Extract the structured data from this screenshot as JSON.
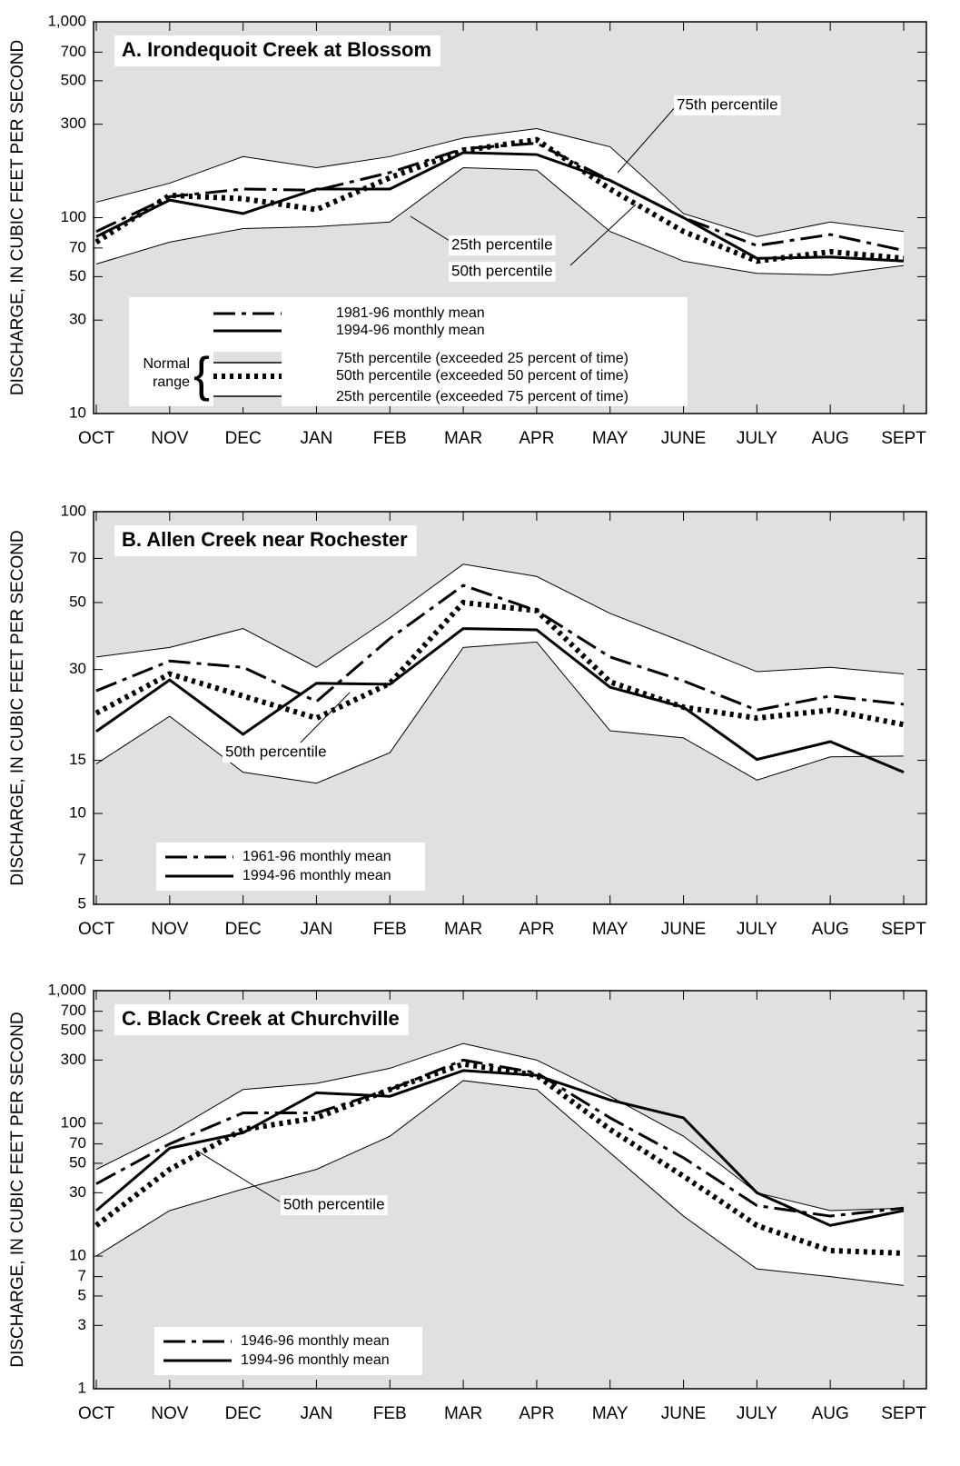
{
  "chart_data": [
    {
      "type": "line",
      "title": "A. Irondequoit Creek at Blossom",
      "y_label": "DISCHARGE, IN CUBIC FEET PER SECOND",
      "log_scale": true,
      "ylim": [
        10,
        1000
      ],
      "yticks": [
        10,
        30,
        50,
        70,
        100,
        300,
        500,
        700,
        {
          "value": 1000,
          "label": "1,000"
        }
      ],
      "categories": [
        "OCT",
        "NOV",
        "DEC",
        "JAN",
        "FEB",
        "MAR",
        "APR",
        "MAY",
        "JUNE",
        "JULY",
        "AUG",
        "SEPT"
      ],
      "background": "#e0e0e0",
      "band_color": "#ffffff",
      "normal_range_label": [
        "Normal",
        "range"
      ],
      "series": [
        {
          "name": "1981-96 monthly mean",
          "color": "#000000",
          "style": "dashdot",
          "in_legend": true,
          "values": [
            85,
            128,
            140,
            138,
            170,
            225,
            240,
            155,
            100,
            72,
            82,
            68
          ]
        },
        {
          "name": "1994-96 monthly mean",
          "color": "#000000",
          "style": "solid",
          "in_legend": true,
          "values": [
            80,
            123,
            105,
            140,
            140,
            215,
            210,
            155,
            100,
            62,
            63,
            60
          ]
        },
        {
          "name": "75th percentile (exceeded 25 percent of time)",
          "color": "#000000",
          "style": "upper",
          "in_legend": true,
          "values": [
            120,
            150,
            205,
            180,
            205,
            255,
            285,
            230,
            105,
            80,
            95,
            85
          ]
        },
        {
          "name": "50th percentile (exceeded 50 percent of time)",
          "color": "#000000",
          "style": "dotted",
          "in_legend": true,
          "values": [
            75,
            130,
            125,
            110,
            160,
            220,
            250,
            140,
            85,
            60,
            67,
            62
          ]
        },
        {
          "name": "25th percentile (exceeded 75 percent of time)",
          "color": "#000000",
          "style": "lower",
          "in_legend": true,
          "values": [
            58,
            75,
            88,
            90,
            95,
            180,
            175,
            85,
            60,
            52,
            51,
            57
          ]
        }
      ],
      "annotations": [
        "75th percentile",
        "25th percentile",
        "50th percentile"
      ]
    },
    {
      "type": "line",
      "title": "B. Allen Creek near Rochester",
      "y_label": "DISCHARGE, IN CUBIC FEET PER SECOND",
      "log_scale": true,
      "ylim": [
        5,
        100
      ],
      "yticks": [
        5,
        7,
        10,
        15,
        30,
        50,
        70,
        100
      ],
      "categories": [
        "OCT",
        "NOV",
        "DEC",
        "JAN",
        "FEB",
        "MAR",
        "APR",
        "MAY",
        "JUNE",
        "JULY",
        "AUG",
        "SEPT"
      ],
      "background": "#e0e0e0",
      "band_color": "#ffffff",
      "series": [
        {
          "name": "1961-96 monthly mean",
          "color": "#000000",
          "style": "dashdot",
          "in_legend": true,
          "values": [
            25.5,
            32,
            30.5,
            23.5,
            38,
            57,
            47,
            33,
            27.5,
            22,
            24.5,
            23
          ]
        },
        {
          "name": "1994-96 monthly mean",
          "color": "#000000",
          "style": "solid",
          "in_legend": true,
          "values": [
            18.7,
            27.7,
            18.3,
            27,
            26.8,
            41,
            40.6,
            26.2,
            22.5,
            15.1,
            17.3,
            13.7
          ]
        },
        {
          "color": "#000000",
          "style": "upper",
          "in_legend": false,
          "values": [
            33,
            35.5,
            41,
            30.5,
            44.5,
            67,
            61,
            46,
            37,
            29.5,
            30.5,
            29
          ]
        },
        {
          "color": "#000000",
          "style": "dotted",
          "in_legend": false,
          "values": [
            21.5,
            29,
            24.5,
            20.7,
            27,
            50,
            47,
            27.3,
            22.5,
            20.7,
            22,
            19.7
          ]
        },
        {
          "color": "#000000",
          "style": "lower",
          "in_legend": false,
          "values": [
            14.6,
            21,
            13.7,
            12.6,
            15.9,
            35.5,
            37,
            18.8,
            17.8,
            12.9,
            15.4,
            15.5
          ]
        }
      ],
      "annotations": [
        "50th percentile"
      ]
    },
    {
      "type": "line",
      "title": "C. Black Creek at Churchville",
      "y_label": "DISCHARGE, IN CUBIC FEET PER SECOND",
      "log_scale": true,
      "ylim": [
        1,
        1000
      ],
      "yticks": [
        1,
        3,
        5,
        7,
        10,
        30,
        50,
        70,
        100,
        300,
        500,
        700,
        {
          "value": 1000,
          "label": "1,000"
        }
      ],
      "categories": [
        "OCT",
        "NOV",
        "DEC",
        "JAN",
        "FEB",
        "MAR",
        "APR",
        "MAY",
        "JUNE",
        "JULY",
        "AUG",
        "SEPT"
      ],
      "background": "#e0e0e0",
      "band_color": "#ffffff",
      "series": [
        {
          "name": "1946-96 monthly mean",
          "color": "#000000",
          "style": "dashdot",
          "in_legend": true,
          "values": [
            35,
            70,
            120,
            120,
            180,
            300,
            240,
            110,
            55,
            24,
            20,
            23
          ]
        },
        {
          "name": "1994-96 monthly mean",
          "color": "#000000",
          "style": "solid",
          "in_legend": true,
          "values": [
            22,
            65,
            85,
            170,
            160,
            250,
            230,
            150,
            110,
            30,
            17,
            22
          ]
        },
        {
          "color": "#000000",
          "style": "upper",
          "in_legend": false,
          "values": [
            45,
            85,
            180,
            200,
            260,
            400,
            300,
            160,
            80,
            30,
            22,
            23
          ]
        },
        {
          "color": "#000000",
          "style": "dotted",
          "in_legend": false,
          "values": [
            17,
            45,
            90,
            110,
            180,
            280,
            230,
            90,
            40,
            17,
            11,
            10.5
          ]
        },
        {
          "color": "#000000",
          "style": "lower",
          "in_legend": false,
          "values": [
            10,
            22,
            32,
            45,
            80,
            210,
            180,
            60,
            20,
            8,
            7,
            6
          ]
        }
      ],
      "annotations": [
        "50th percentile"
      ]
    }
  ]
}
